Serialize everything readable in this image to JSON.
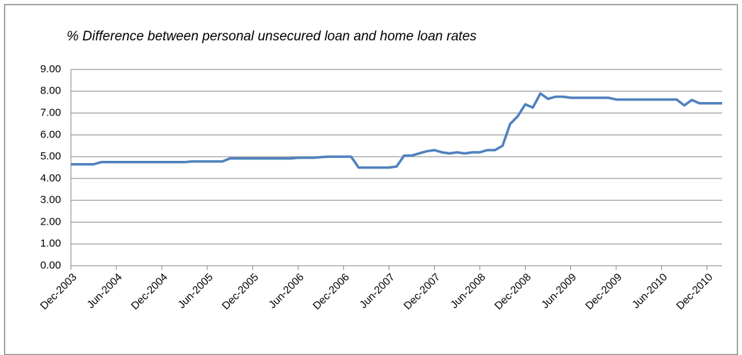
{
  "chart_data": {
    "type": "line",
    "title": "% Difference between personal unsecured loan and home loan rates",
    "categories": [
      "Dec-2003",
      null,
      null,
      null,
      null,
      null,
      "Jun-2004",
      null,
      null,
      null,
      null,
      null,
      "Dec-2004",
      null,
      null,
      null,
      null,
      null,
      "Jun-2005",
      null,
      null,
      null,
      null,
      null,
      "Dec-2005",
      null,
      null,
      null,
      null,
      null,
      "Jun-2006",
      null,
      null,
      null,
      null,
      null,
      "Dec-2006",
      null,
      null,
      null,
      null,
      null,
      "Jun-2007",
      null,
      null,
      null,
      null,
      null,
      "Dec-2007",
      null,
      null,
      null,
      null,
      null,
      "Jun-2008",
      null,
      null,
      null,
      null,
      null,
      "Dec-2008",
      null,
      null,
      null,
      null,
      null,
      "Jun-2009",
      null,
      null,
      null,
      null,
      null,
      "Dec-2009",
      null,
      null,
      null,
      null,
      null,
      "Jun-2010",
      null,
      null,
      null,
      null,
      null,
      "Dec-2010",
      null,
      null
    ],
    "series": [
      {
        "color": "#4f81bd",
        "values": [
          4.65,
          4.65,
          4.65,
          4.65,
          4.75,
          4.75,
          4.75,
          4.75,
          4.75,
          4.75,
          4.75,
          4.75,
          4.75,
          4.75,
          4.75,
          4.75,
          4.78,
          4.78,
          4.78,
          4.78,
          4.78,
          4.92,
          4.92,
          4.92,
          4.92,
          4.92,
          4.92,
          4.92,
          4.92,
          4.92,
          4.95,
          4.95,
          4.95,
          4.98,
          5.0,
          5.0,
          5.0,
          5.0,
          4.5,
          4.5,
          4.5,
          4.5,
          4.5,
          4.55,
          5.05,
          5.05,
          5.15,
          5.25,
          5.3,
          5.2,
          5.15,
          5.2,
          5.15,
          5.2,
          5.2,
          5.3,
          5.3,
          5.5,
          6.5,
          6.85,
          7.4,
          7.25,
          7.9,
          7.65,
          7.75,
          7.75,
          7.7,
          7.7,
          7.7,
          7.7,
          7.7,
          7.7,
          7.62,
          7.62,
          7.62,
          7.62,
          7.62,
          7.62,
          7.62,
          7.62,
          7.62,
          7.35,
          7.6,
          7.45,
          7.45,
          7.45,
          7.45
        ]
      }
    ],
    "ylim": [
      0,
      9
    ],
    "yticks": [
      {
        "value": 0,
        "label": "0.00"
      },
      {
        "value": 1,
        "label": "1.00"
      },
      {
        "value": 2,
        "label": "2.00"
      },
      {
        "value": 3,
        "label": "3.00"
      },
      {
        "value": 4,
        "label": "4.00"
      },
      {
        "value": 5,
        "label": "5.00"
      },
      {
        "value": 6,
        "label": "6.00"
      },
      {
        "value": 7,
        "label": "7.00"
      },
      {
        "value": 8,
        "label": "8.00"
      },
      {
        "value": 9,
        "label": "9.00"
      }
    ],
    "grid": true
  }
}
